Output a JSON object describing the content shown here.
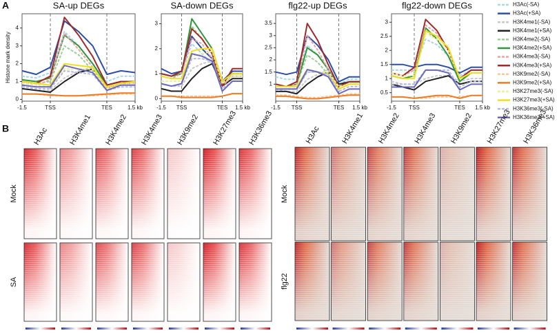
{
  "panel_labels": [
    "A",
    "B"
  ],
  "legend": [
    {
      "name": "H3Ac(-SA)",
      "color": "#a9d6e8",
      "dash": true
    },
    {
      "name": "H3Ac(+SA)",
      "color": "#2b4ea6",
      "dash": false
    },
    {
      "name": "H3K4me1(-SA)",
      "color": "#c8c8c8",
      "dash": true
    },
    {
      "name": "H3K4me1(+SA)",
      "color": "#222222",
      "dash": false
    },
    {
      "name": "H3K4me2(-SA)",
      "color": "#9ccf94",
      "dash": true
    },
    {
      "name": "H3K4me2(+SA)",
      "color": "#2f963c",
      "dash": false
    },
    {
      "name": "H3K4me3(-SA)",
      "color": "#e6a4a4",
      "dash": true
    },
    {
      "name": "H3K4me3(+SA)",
      "color": "#9e2a2a",
      "dash": false
    },
    {
      "name": "H3K9me2(-SA)",
      "color": "#f6c89c",
      "dash": true
    },
    {
      "name": "H3K9me2(+SA)",
      "color": "#f07a22",
      "dash": false
    },
    {
      "name": "H3K27me3(-SA)",
      "color": "#eeee9c",
      "dash": true
    },
    {
      "name": "H3K27me3(+SA)",
      "color": "#efdf1e",
      "dash": false
    },
    {
      "name": "H3K36me3(-SA)",
      "color": "#b2bae0",
      "dash": true
    },
    {
      "name": "H3K36me3(+SA)",
      "color": "#6a68be",
      "dash": false
    }
  ],
  "chart_data": [
    {
      "type": "line",
      "title": "SA-up DEGs",
      "y_label": "Histone mark density",
      "x": [
        0,
        1,
        2,
        3,
        4,
        5,
        6,
        7,
        8
      ],
      "xlim": [
        0,
        8
      ],
      "xticks": [
        {
          "value": 0,
          "label": "-1.5"
        },
        {
          "value": 2,
          "label": "TSS"
        },
        {
          "value": 6,
          "label": "TES"
        },
        {
          "value": 8,
          "label": "1.5 kb"
        }
      ],
      "ylim": [
        -0.1,
        4.8
      ],
      "yticks": [
        0,
        1,
        2,
        3,
        4
      ],
      "series": [
        {
          "values": [
            1.3,
            1.2,
            1.5,
            3.8,
            3.0,
            2.0,
            1.0,
            1.3,
            1.3
          ]
        },
        {
          "values": [
            1.6,
            1.4,
            1.8,
            4.4,
            3.8,
            3.0,
            1.4,
            1.6,
            1.5
          ]
        },
        {
          "values": [
            0.6,
            0.5,
            0.5,
            1.2,
            1.6,
            1.8,
            0.8,
            1.0,
            1.0
          ]
        },
        {
          "values": [
            0.6,
            0.5,
            0.4,
            1.0,
            1.5,
            1.7,
            0.8,
            1.0,
            1.0
          ]
        },
        {
          "values": [
            1.0,
            0.9,
            1.0,
            3.0,
            2.5,
            1.6,
            0.6,
            0.9,
            0.9
          ]
        },
        {
          "values": [
            1.1,
            1.0,
            1.2,
            3.6,
            3.0,
            2.0,
            0.8,
            1.0,
            1.0
          ]
        },
        {
          "values": [
            0.9,
            0.8,
            1.1,
            3.7,
            2.8,
            1.8,
            0.6,
            0.9,
            0.9
          ]
        },
        {
          "values": [
            1.0,
            0.9,
            1.3,
            4.6,
            3.6,
            2.4,
            0.8,
            1.0,
            1.0
          ]
        },
        {
          "values": [
            0.3,
            0.3,
            0.2,
            0.2,
            0.2,
            0.2,
            0.25,
            0.3,
            0.3
          ]
        },
        {
          "values": [
            0.3,
            0.3,
            0.25,
            0.2,
            0.2,
            0.25,
            0.3,
            0.35,
            0.35
          ]
        },
        {
          "values": [
            0.9,
            0.8,
            0.7,
            1.7,
            1.7,
            1.7,
            0.6,
            0.8,
            0.9
          ]
        },
        {
          "values": [
            1.0,
            0.9,
            0.8,
            2.0,
            1.9,
            1.8,
            0.7,
            0.9,
            1.0
          ]
        },
        {
          "values": [
            0.7,
            0.6,
            0.6,
            1.6,
            1.5,
            1.4,
            0.5,
            0.7,
            0.7
          ]
        },
        {
          "values": [
            0.8,
            0.7,
            0.7,
            1.9,
            1.7,
            1.5,
            0.5,
            0.8,
            0.8
          ]
        }
      ]
    },
    {
      "type": "line",
      "title": "SA-down DEGs",
      "x": [
        0,
        1,
        2,
        3,
        4,
        5,
        6,
        7,
        8
      ],
      "xlim": [
        0,
        8
      ],
      "xticks": [
        {
          "value": 0,
          "label": "-1.5"
        },
        {
          "value": 2,
          "label": "TSS"
        },
        {
          "value": 6,
          "label": "TES"
        },
        {
          "value": 8,
          "label": "1.5 kb"
        }
      ],
      "ylim": [
        -0.1,
        3.4
      ],
      "yticks": [
        0,
        1,
        2,
        3
      ],
      "series": [
        {
          "values": [
            1.0,
            0.9,
            1.0,
            2.2,
            1.8,
            1.4,
            0.6,
            0.9,
            0.9
          ]
        },
        {
          "values": [
            1.2,
            1.0,
            1.1,
            2.5,
            2.0,
            1.6,
            0.7,
            1.1,
            1.1
          ]
        },
        {
          "values": [
            0.6,
            0.5,
            0.5,
            1.2,
            1.4,
            1.5,
            0.6,
            0.9,
            0.9
          ]
        },
        {
          "values": [
            0.4,
            0.3,
            0.3,
            0.8,
            1.2,
            1.4,
            0.5,
            0.8,
            0.8
          ]
        },
        {
          "values": [
            1.0,
            0.9,
            1.0,
            2.9,
            2.4,
            1.8,
            0.6,
            1.0,
            1.0
          ]
        },
        {
          "values": [
            1.0,
            0.9,
            1.0,
            3.2,
            2.6,
            2.0,
            0.7,
            1.0,
            1.0
          ]
        },
        {
          "values": [
            0.9,
            0.8,
            1.0,
            2.4,
            2.2,
            1.6,
            0.5,
            0.9,
            0.9
          ]
        },
        {
          "values": [
            1.0,
            0.9,
            1.1,
            2.8,
            2.4,
            1.8,
            0.5,
            1.2,
            1.2
          ]
        },
        {
          "values": [
            0.1,
            0.1,
            0.1,
            0.1,
            0.1,
            0.1,
            0.1,
            0.2,
            0.2
          ]
        },
        {
          "values": [
            0.1,
            0.1,
            0.05,
            0.05,
            0.05,
            0.05,
            0.1,
            0.2,
            0.2
          ]
        },
        {
          "values": [
            0.7,
            0.7,
            0.7,
            1.7,
            1.8,
            1.9,
            0.6,
            0.9,
            0.9
          ]
        },
        {
          "values": [
            0.9,
            0.8,
            0.8,
            1.9,
            2.0,
            2.0,
            0.7,
            1.0,
            1.0
          ]
        },
        {
          "values": [
            0.6,
            0.5,
            0.6,
            1.6,
            1.6,
            1.5,
            0.4,
            0.7,
            0.7
          ]
        },
        {
          "values": [
            0.6,
            0.5,
            0.6,
            1.8,
            1.7,
            1.5,
            0.3,
            0.7,
            0.7
          ]
        }
      ]
    },
    {
      "type": "line",
      "title": "flg22-up DEGs",
      "x": [
        0,
        1,
        2,
        3,
        4,
        5,
        6,
        7,
        8
      ],
      "xlim": [
        0,
        8
      ],
      "xticks": [
        {
          "value": 0,
          "label": "-1.5"
        },
        {
          "value": 2,
          "label": "TSS"
        },
        {
          "value": 6,
          "label": "TES"
        },
        {
          "value": 8,
          "label": "1.5 kb"
        }
      ],
      "ylim": [
        0.3,
        3.9
      ],
      "yticks": [
        1,
        1.5,
        2,
        2.5,
        3,
        3.5
      ],
      "series": [
        {
          "values": [
            1.3,
            1.2,
            1.2,
            2.6,
            2.2,
            1.6,
            1.0,
            1.2,
            1.2
          ]
        },
        {
          "values": [
            1.5,
            1.4,
            1.5,
            3.0,
            2.6,
            2.0,
            1.1,
            1.3,
            1.3
          ]
        },
        {
          "values": [
            0.8,
            0.7,
            0.7,
            1.2,
            1.4,
            1.6,
            1.0,
            1.1,
            1.1
          ]
        },
        {
          "values": [
            0.7,
            0.7,
            0.6,
            1.0,
            1.3,
            1.5,
            1.0,
            1.1,
            1.1
          ]
        },
        {
          "values": [
            1.0,
            0.9,
            1.0,
            2.2,
            1.9,
            1.4,
            0.8,
            1.0,
            1.0
          ]
        },
        {
          "values": [
            1.0,
            0.9,
            1.0,
            2.5,
            2.2,
            1.6,
            0.9,
            1.1,
            1.1
          ]
        },
        {
          "values": [
            1.0,
            0.9,
            1.0,
            3.0,
            2.4,
            1.6,
            0.8,
            1.0,
            1.0
          ]
        },
        {
          "values": [
            1.0,
            0.9,
            1.1,
            3.5,
            2.8,
            1.8,
            0.9,
            1.1,
            1.1
          ]
        },
        {
          "values": [
            0.55,
            0.55,
            0.5,
            0.45,
            0.45,
            0.5,
            0.55,
            0.6,
            0.6
          ]
        },
        {
          "values": [
            0.5,
            0.5,
            0.45,
            0.4,
            0.4,
            0.45,
            0.5,
            0.55,
            0.55
          ]
        },
        {
          "values": [
            0.9,
            0.9,
            0.9,
            1.5,
            1.5,
            1.5,
            0.9,
            1.0,
            1.0
          ]
        },
        {
          "values": [
            0.9,
            0.9,
            0.9,
            1.6,
            1.5,
            1.4,
            0.8,
            1.0,
            1.0
          ]
        },
        {
          "values": [
            0.8,
            0.8,
            0.8,
            1.5,
            1.5,
            1.4,
            0.7,
            0.9,
            0.9
          ]
        },
        {
          "values": [
            0.8,
            0.8,
            0.8,
            1.6,
            1.5,
            1.3,
            0.6,
            0.8,
            0.8
          ]
        }
      ]
    },
    {
      "type": "line",
      "title": "flg22-down DEGs",
      "x": [
        0,
        1,
        2,
        3,
        4,
        5,
        6,
        7,
        8
      ],
      "xlim": [
        0,
        8
      ],
      "xticks": [
        {
          "value": 0,
          "label": "-1.5"
        },
        {
          "value": 2,
          "label": "TSS"
        },
        {
          "value": 6,
          "label": "TES"
        },
        {
          "value": 8,
          "label": "1.5 kb"
        }
      ],
      "ylim": [
        0.2,
        3.3
      ],
      "yticks": [
        0.5,
        1.0,
        1.5,
        2.0,
        2.5,
        3.0
      ],
      "series": [
        {
          "values": [
            1.3,
            1.3,
            1.3,
            2.4,
            2.2,
            1.8,
            1.1,
            1.3,
            1.3
          ]
        },
        {
          "values": [
            1.5,
            1.5,
            1.4,
            1.5,
            1.5,
            1.4,
            1.2,
            1.4,
            1.4
          ]
        },
        {
          "values": [
            0.9,
            0.8,
            0.8,
            1.0,
            1.1,
            1.1,
            0.9,
            1.0,
            1.0
          ]
        },
        {
          "values": [
            0.8,
            0.7,
            0.6,
            0.9,
            1.0,
            1.1,
            0.8,
            0.9,
            0.9
          ]
        },
        {
          "values": [
            1.1,
            1.0,
            1.1,
            2.7,
            2.4,
            1.8,
            0.9,
            1.2,
            1.2
          ]
        },
        {
          "values": [
            1.1,
            1.0,
            1.1,
            2.8,
            2.4,
            1.8,
            0.9,
            1.2,
            1.2
          ]
        },
        {
          "values": [
            1.2,
            1.1,
            1.3,
            2.9,
            2.6,
            2.0,
            1.0,
            1.3,
            1.3
          ]
        },
        {
          "values": [
            1.2,
            1.1,
            1.4,
            3.1,
            2.7,
            2.0,
            1.0,
            1.3,
            1.3
          ]
        },
        {
          "values": [
            0.35,
            0.35,
            0.3,
            0.3,
            0.35,
            0.35,
            0.35,
            0.4,
            0.4
          ]
        },
        {
          "values": [
            0.35,
            0.35,
            0.3,
            0.35,
            0.4,
            0.4,
            0.3,
            0.4,
            0.4
          ]
        },
        {
          "values": [
            1.2,
            1.1,
            1.1,
            2.6,
            2.4,
            2.0,
            1.0,
            1.2,
            1.2
          ]
        },
        {
          "values": [
            1.1,
            1.0,
            1.0,
            2.7,
            2.5,
            2.1,
            1.0,
            1.2,
            1.2
          ]
        },
        {
          "values": [
            0.8,
            0.8,
            0.8,
            1.3,
            1.3,
            1.3,
            0.7,
            0.9,
            0.9
          ]
        },
        {
          "values": [
            0.7,
            0.7,
            0.7,
            1.3,
            1.3,
            1.2,
            0.6,
            0.8,
            0.8
          ]
        }
      ]
    }
  ],
  "heatmaps": [
    {
      "columns": [
        "H3Ac",
        "H3K4me1",
        "H3K4me2",
        "H3K4me3",
        "H3K9me2",
        "H3K27me3",
        "H3K36me3"
      ],
      "rows": [
        "Mock",
        "SA"
      ]
    },
    {
      "columns": [
        "H3Ac",
        "H3K4me1",
        "H3K4me2",
        "H3K4me3",
        "H3K9me2",
        "H3K27me3",
        "H3K36me3"
      ],
      "rows": [
        "Mock",
        "flg22"
      ]
    }
  ]
}
